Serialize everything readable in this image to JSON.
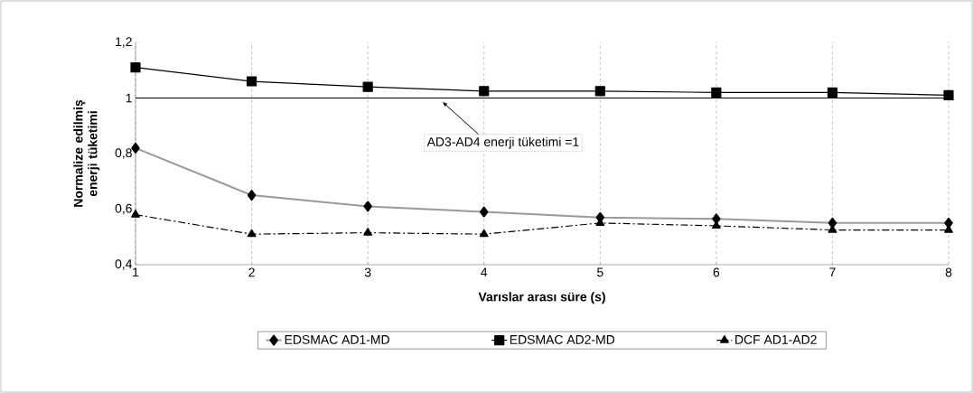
{
  "chart_data": {
    "type": "line",
    "xlabel": "Varıslar arası süre (s)",
    "ylabel": "Normalize edilmiş enerji tüketimi",
    "x": [
      1,
      2,
      3,
      4,
      5,
      6,
      7,
      8
    ],
    "series": [
      {
        "name": "EDSMAC AD1-MD",
        "color": "#999999",
        "marker": "diamond",
        "line_style": "solid",
        "values": [
          0.82,
          0.65,
          0.61,
          0.59,
          0.57,
          0.565,
          0.55,
          0.55
        ]
      },
      {
        "name": "EDSMAC AD2-MD",
        "color": "#000000",
        "marker": "square",
        "line_style": "solid",
        "values": [
          1.11,
          1.06,
          1.04,
          1.025,
          1.025,
          1.02,
          1.02,
          1.01
        ]
      },
      {
        "name": "DCF AD1-AD2",
        "color": "#000000",
        "marker": "triangle",
        "line_style": "dash-dot",
        "values": [
          0.58,
          0.51,
          0.515,
          0.51,
          0.55,
          0.54,
          0.525,
          0.525
        ]
      }
    ],
    "xlim": [
      1,
      8
    ],
    "xticks": [
      1,
      2,
      3,
      4,
      5,
      6,
      7,
      8
    ],
    "ylim": [
      0.4,
      1.2
    ],
    "yticks": [
      {
        "value": 0.4,
        "label": "0,4"
      },
      {
        "value": 0.6,
        "label": "0,6"
      },
      {
        "value": 0.8,
        "label": "0,8"
      },
      {
        "value": 1,
        "label": "1"
      },
      {
        "value": 1.2,
        "label": "1,2"
      }
    ],
    "ref_lines": [
      {
        "axis": "y",
        "value": 1,
        "color": "#000000"
      }
    ],
    "annotations": [
      {
        "text": "AD3-AD4 enerji tüketimi =1",
        "x": 3.64,
        "y": 1
      }
    ],
    "grid": "x",
    "legend": "bottom"
  }
}
